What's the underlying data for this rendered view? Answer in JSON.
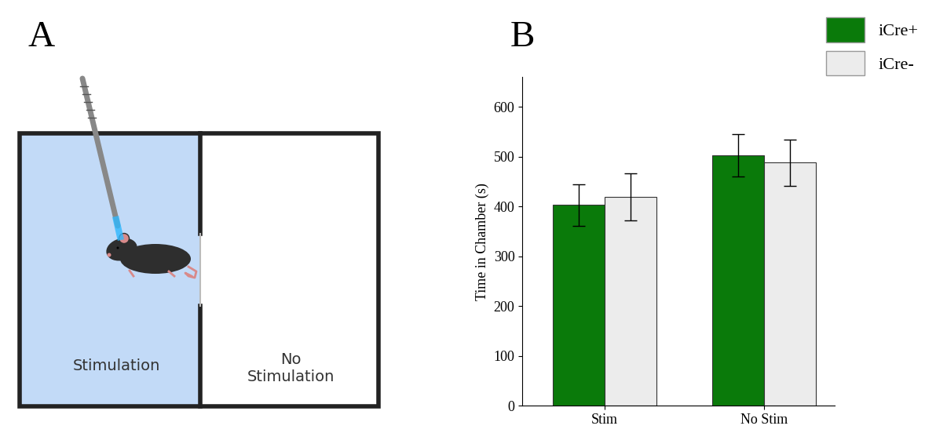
{
  "panel_labels": [
    "A",
    "B"
  ],
  "diagram": {
    "chambers": [
      {
        "label": "Stimulation"
      },
      {
        "label": "No\nStimulation"
      }
    ]
  },
  "chart_data": {
    "type": "bar",
    "categories": [
      "Stim",
      "No Stim"
    ],
    "series": [
      {
        "name": "iCre+",
        "color": "#0a7a0a",
        "values": [
          403,
          503
        ],
        "errors": [
          42,
          42
        ]
      },
      {
        "name": "iCre-",
        "color": "#ececec",
        "values": [
          419,
          488
        ],
        "errors": [
          47,
          47
        ]
      }
    ],
    "y_label": "Time in Chamber (s)",
    "ylim": [
      0,
      660
    ],
    "yticks": [
      0,
      100,
      200,
      300,
      400,
      500,
      600
    ],
    "legend": "upper right"
  }
}
